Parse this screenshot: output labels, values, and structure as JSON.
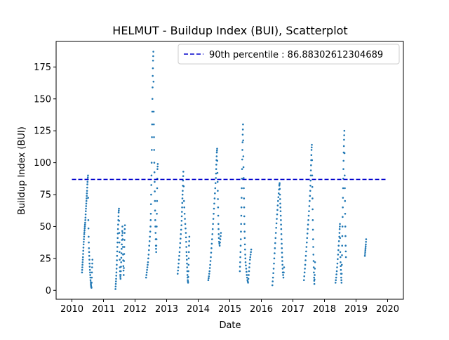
{
  "chart_data": {
    "type": "scatter",
    "title": "HELMUT - Buildup Index (BUI), Scatterplot",
    "xlabel": "Date",
    "ylabel": "Buildup Index (BUI)",
    "xlim": [
      2009.5,
      2020.5
    ],
    "ylim": [
      -7,
      195
    ],
    "xticks": [
      2010,
      2011,
      2012,
      2013,
      2014,
      2015,
      2016,
      2017,
      2018,
      2019,
      2020
    ],
    "yticks": [
      0,
      25,
      50,
      75,
      100,
      125,
      150,
      175
    ],
    "grid": false,
    "legend_position": "top-right",
    "legend": [
      {
        "label": "90th percentile : 86.88302612304689",
        "style": "dashed-line",
        "color": "#0000cc"
      }
    ],
    "reference_line": {
      "y": 86.88302612304689,
      "x_range": [
        2010,
        2020
      ],
      "color": "#0000cc",
      "style": "dashed"
    },
    "marker_color": "#1f77b4",
    "seasons": [
      {
        "start": 2010.32,
        "end": 2010.65,
        "points": [
          [
            2010.32,
            14
          ],
          [
            2010.33,
            18
          ],
          [
            2010.34,
            22
          ],
          [
            2010.35,
            26
          ],
          [
            2010.36,
            31
          ],
          [
            2010.37,
            36
          ],
          [
            2010.38,
            40
          ],
          [
            2010.39,
            44
          ],
          [
            2010.4,
            47
          ],
          [
            2010.41,
            50
          ],
          [
            2010.42,
            53
          ],
          [
            2010.43,
            57
          ],
          [
            2010.44,
            62
          ],
          [
            2010.45,
            66
          ],
          [
            2010.46,
            70
          ],
          [
            2010.47,
            74
          ],
          [
            2010.48,
            78
          ],
          [
            2010.49,
            83
          ],
          [
            2010.5,
            87
          ],
          [
            2010.51,
            90
          ],
          [
            2010.52,
            55
          ],
          [
            2010.53,
            42
          ],
          [
            2010.54,
            33
          ],
          [
            2010.55,
            27
          ],
          [
            2010.56,
            21
          ],
          [
            2010.57,
            16
          ],
          [
            2010.58,
            12
          ],
          [
            2010.59,
            8
          ],
          [
            2010.6,
            5
          ],
          [
            2010.61,
            3
          ],
          [
            2010.62,
            2
          ],
          [
            2010.63,
            10
          ],
          [
            2010.64,
            18
          ],
          [
            2010.65,
            24
          ]
        ]
      },
      {
        "start": 2011.38,
        "end": 2011.68,
        "points": [
          [
            2011.38,
            1
          ],
          [
            2011.39,
            5
          ],
          [
            2011.4,
            9
          ],
          [
            2011.41,
            14
          ],
          [
            2011.42,
            20
          ],
          [
            2011.43,
            27
          ],
          [
            2011.44,
            34
          ],
          [
            2011.45,
            41
          ],
          [
            2011.46,
            48
          ],
          [
            2011.47,
            55
          ],
          [
            2011.48,
            61
          ],
          [
            2011.49,
            64
          ],
          [
            2011.5,
            45
          ],
          [
            2011.51,
            30
          ],
          [
            2011.52,
            18
          ],
          [
            2011.53,
            12
          ],
          [
            2011.54,
            9
          ],
          [
            2011.55,
            15
          ],
          [
            2011.56,
            22
          ],
          [
            2011.57,
            29
          ],
          [
            2011.58,
            36
          ],
          [
            2011.59,
            43
          ],
          [
            2011.6,
            50
          ],
          [
            2011.61,
            40
          ],
          [
            2011.62,
            28
          ],
          [
            2011.63,
            19
          ],
          [
            2011.64,
            12
          ],
          [
            2011.65,
            23
          ],
          [
            2011.66,
            34
          ],
          [
            2011.67,
            45
          ],
          [
            2011.68,
            51
          ]
        ]
      },
      {
        "start": 2012.35,
        "end": 2012.72,
        "points": [
          [
            2012.35,
            10
          ],
          [
            2012.37,
            14
          ],
          [
            2012.39,
            18
          ],
          [
            2012.41,
            22
          ],
          [
            2012.43,
            28
          ],
          [
            2012.45,
            35
          ],
          [
            2012.47,
            42
          ],
          [
            2012.49,
            50
          ],
          [
            2012.5,
            60
          ],
          [
            2012.51,
            75
          ],
          [
            2012.52,
            90
          ],
          [
            2012.53,
            110
          ],
          [
            2012.54,
            130
          ],
          [
            2012.55,
            150
          ],
          [
            2012.56,
            168
          ],
          [
            2012.57,
            180
          ],
          [
            2012.58,
            187
          ],
          [
            2012.59,
            140
          ],
          [
            2012.6,
            120
          ],
          [
            2012.61,
            100
          ],
          [
            2012.62,
            85
          ],
          [
            2012.63,
            70
          ],
          [
            2012.64,
            55
          ],
          [
            2012.65,
            45
          ],
          [
            2012.66,
            35
          ],
          [
            2012.67,
            30
          ],
          [
            2012.68,
            40
          ],
          [
            2012.69,
            60
          ],
          [
            2012.7,
            80
          ],
          [
            2012.71,
            95
          ],
          [
            2012.72,
            99
          ]
        ]
      },
      {
        "start": 2013.35,
        "end": 2013.72,
        "points": [
          [
            2013.35,
            13
          ],
          [
            2013.37,
            18
          ],
          [
            2013.39,
            24
          ],
          [
            2013.41,
            30
          ],
          [
            2013.43,
            37
          ],
          [
            2013.45,
            44
          ],
          [
            2013.47,
            51
          ],
          [
            2013.48,
            58
          ],
          [
            2013.49,
            65
          ],
          [
            2013.5,
            72
          ],
          [
            2013.51,
            78
          ],
          [
            2013.52,
            86
          ],
          [
            2013.53,
            93
          ],
          [
            2013.55,
            70
          ],
          [
            2013.57,
            60
          ],
          [
            2013.59,
            52
          ],
          [
            2013.61,
            45
          ],
          [
            2013.62,
            38
          ],
          [
            2013.63,
            30
          ],
          [
            2013.64,
            24
          ],
          [
            2013.65,
            18
          ],
          [
            2013.66,
            12
          ],
          [
            2013.67,
            8
          ],
          [
            2013.68,
            6
          ],
          [
            2013.69,
            15
          ],
          [
            2013.7,
            25
          ],
          [
            2013.71,
            35
          ],
          [
            2013.72,
            42
          ]
        ]
      },
      {
        "start": 2014.32,
        "end": 2014.72,
        "points": [
          [
            2014.32,
            8
          ],
          [
            2014.34,
            11
          ],
          [
            2014.36,
            15
          ],
          [
            2014.38,
            20
          ],
          [
            2014.4,
            26
          ],
          [
            2014.42,
            33
          ],
          [
            2014.44,
            40
          ],
          [
            2014.46,
            48
          ],
          [
            2014.48,
            56
          ],
          [
            2014.5,
            64
          ],
          [
            2014.52,
            72
          ],
          [
            2014.54,
            80
          ],
          [
            2014.56,
            88
          ],
          [
            2014.57,
            95
          ],
          [
            2014.58,
            102
          ],
          [
            2014.59,
            108
          ],
          [
            2014.6,
            111
          ],
          [
            2014.61,
            92
          ],
          [
            2014.62,
            78
          ],
          [
            2014.63,
            65
          ],
          [
            2014.64,
            52
          ],
          [
            2014.65,
            44
          ],
          [
            2014.66,
            38
          ],
          [
            2014.68,
            35
          ],
          [
            2014.7,
            40
          ],
          [
            2014.72,
            45
          ]
        ]
      },
      {
        "start": 2015.32,
        "end": 2015.68,
        "points": [
          [
            2015.32,
            15
          ],
          [
            2015.33,
            22
          ],
          [
            2015.34,
            30
          ],
          [
            2015.35,
            40
          ],
          [
            2015.36,
            52
          ],
          [
            2015.37,
            65
          ],
          [
            2015.38,
            80
          ],
          [
            2015.39,
            95
          ],
          [
            2015.4,
            110
          ],
          [
            2015.41,
            122
          ],
          [
            2015.42,
            130
          ],
          [
            2015.43,
            105
          ],
          [
            2015.44,
            88
          ],
          [
            2015.45,
            72
          ],
          [
            2015.46,
            58
          ],
          [
            2015.47,
            46
          ],
          [
            2015.48,
            36
          ],
          [
            2015.49,
            28
          ],
          [
            2015.5,
            22
          ],
          [
            2015.52,
            17
          ],
          [
            2015.54,
            12
          ],
          [
            2015.56,
            8
          ],
          [
            2015.58,
            6
          ],
          [
            2015.6,
            12
          ],
          [
            2015.62,
            18
          ],
          [
            2015.64,
            24
          ],
          [
            2015.66,
            28
          ],
          [
            2015.68,
            32
          ]
        ]
      },
      {
        "start": 2016.35,
        "end": 2016.72,
        "points": [
          [
            2016.35,
            4
          ],
          [
            2016.37,
            10
          ],
          [
            2016.39,
            17
          ],
          [
            2016.41,
            25
          ],
          [
            2016.43,
            33
          ],
          [
            2016.45,
            41
          ],
          [
            2016.47,
            49
          ],
          [
            2016.49,
            56
          ],
          [
            2016.51,
            63
          ],
          [
            2016.53,
            70
          ],
          [
            2016.55,
            76
          ],
          [
            2016.57,
            82
          ],
          [
            2016.58,
            84
          ],
          [
            2016.59,
            75
          ],
          [
            2016.6,
            68
          ],
          [
            2016.61,
            62
          ],
          [
            2016.62,
            55
          ],
          [
            2016.63,
            48
          ],
          [
            2016.64,
            40
          ],
          [
            2016.65,
            33
          ],
          [
            2016.66,
            26
          ],
          [
            2016.67,
            20
          ],
          [
            2016.68,
            14
          ],
          [
            2016.7,
            10
          ],
          [
            2016.72,
            18
          ]
        ]
      },
      {
        "start": 2017.35,
        "end": 2017.7,
        "points": [
          [
            2017.35,
            8
          ],
          [
            2017.37,
            14
          ],
          [
            2017.39,
            20
          ],
          [
            2017.41,
            27
          ],
          [
            2017.43,
            34
          ],
          [
            2017.45,
            41
          ],
          [
            2017.47,
            48
          ],
          [
            2017.49,
            55
          ],
          [
            2017.51,
            62
          ],
          [
            2017.53,
            70
          ],
          [
            2017.55,
            78
          ],
          [
            2017.56,
            86
          ],
          [
            2017.57,
            94
          ],
          [
            2017.58,
            102
          ],
          [
            2017.59,
            110
          ],
          [
            2017.6,
            114
          ],
          [
            2017.61,
            90
          ],
          [
            2017.62,
            72
          ],
          [
            2017.63,
            55
          ],
          [
            2017.64,
            40
          ],
          [
            2017.65,
            28
          ],
          [
            2017.66,
            18
          ],
          [
            2017.67,
            10
          ],
          [
            2017.68,
            5
          ],
          [
            2017.69,
            12
          ],
          [
            2017.7,
            22
          ]
        ]
      },
      {
        "start": 2018.35,
        "end": 2018.68,
        "points": [
          [
            2018.35,
            6
          ],
          [
            2018.37,
            10
          ],
          [
            2018.39,
            15
          ],
          [
            2018.41,
            21
          ],
          [
            2018.43,
            28
          ],
          [
            2018.45,
            35
          ],
          [
            2018.47,
            42
          ],
          [
            2018.48,
            48
          ],
          [
            2018.49,
            52
          ],
          [
            2018.5,
            30
          ],
          [
            2018.51,
            22
          ],
          [
            2018.52,
            16
          ],
          [
            2018.53,
            10
          ],
          [
            2018.54,
            6
          ],
          [
            2018.55,
            20
          ],
          [
            2018.56,
            35
          ],
          [
            2018.57,
            50
          ],
          [
            2018.58,
            65
          ],
          [
            2018.59,
            80
          ],
          [
            2018.6,
            95
          ],
          [
            2018.61,
            108
          ],
          [
            2018.62,
            118
          ],
          [
            2018.63,
            125
          ],
          [
            2018.64,
            90
          ],
          [
            2018.65,
            70
          ],
          [
            2018.66,
            50
          ],
          [
            2018.67,
            35
          ],
          [
            2018.68,
            26
          ]
        ]
      },
      {
        "start": 2019.28,
        "end": 2019.32,
        "points": [
          [
            2019.28,
            27
          ],
          [
            2019.29,
            30
          ],
          [
            2019.3,
            33
          ],
          [
            2019.31,
            36
          ],
          [
            2019.32,
            40
          ]
        ]
      }
    ]
  }
}
